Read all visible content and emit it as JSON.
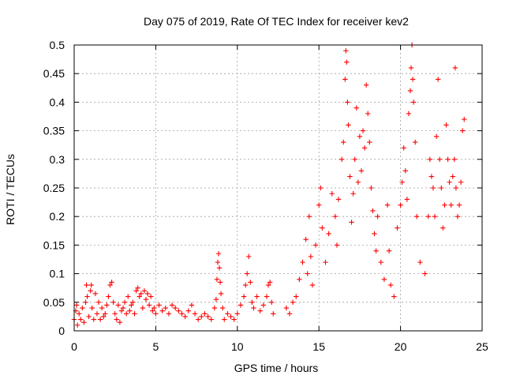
{
  "chart_data": {
    "type": "scatter",
    "title": "Day 075 of 2019, Rate Of TEC Index for receiver kev2",
    "xlabel": "GPS time / hours",
    "ylabel": "ROTI / TECUs",
    "xlim": [
      0,
      25
    ],
    "ylim": [
      0,
      0.5
    ],
    "xticks": [
      0,
      5,
      10,
      15,
      20,
      25
    ],
    "xtick_labels": [
      "0",
      "5",
      "10",
      "15",
      "20",
      "25"
    ],
    "yticks": [
      0,
      0.05,
      0.1,
      0.15,
      0.2,
      0.25,
      0.3,
      0.35,
      0.4,
      0.45,
      0.5
    ],
    "ytick_labels": [
      "0",
      "0.05",
      "0.1",
      "0.15",
      "0.2",
      "0.25",
      "0.3",
      "0.35",
      "0.4",
      "0.45",
      "0.5"
    ],
    "grid": true,
    "marker": "+",
    "color": "#ff0000",
    "series": [
      {
        "name": "ROTI",
        "points": [
          [
            0.0,
            0.02
          ],
          [
            0.1,
            0.035
          ],
          [
            0.15,
            0.045
          ],
          [
            0.2,
            0.01
          ],
          [
            0.3,
            0.03
          ],
          [
            0.4,
            0.02
          ],
          [
            0.5,
            0.04
          ],
          [
            0.6,
            0.015
          ],
          [
            0.7,
            0.05
          ],
          [
            0.75,
            0.08
          ],
          [
            0.8,
            0.06
          ],
          [
            0.9,
            0.025
          ],
          [
            1.0,
            0.07
          ],
          [
            1.05,
            0.08
          ],
          [
            1.1,
            0.04
          ],
          [
            1.2,
            0.02
          ],
          [
            1.3,
            0.065
          ],
          [
            1.4,
            0.03
          ],
          [
            1.5,
            0.05
          ],
          [
            1.6,
            0.02
          ],
          [
            1.7,
            0.04
          ],
          [
            1.8,
            0.025
          ],
          [
            1.9,
            0.03
          ],
          [
            2.0,
            0.045
          ],
          [
            2.1,
            0.06
          ],
          [
            2.2,
            0.08
          ],
          [
            2.3,
            0.085
          ],
          [
            2.4,
            0.05
          ],
          [
            2.5,
            0.03
          ],
          [
            2.6,
            0.02
          ],
          [
            2.7,
            0.045
          ],
          [
            2.8,
            0.015
          ],
          [
            2.9,
            0.035
          ],
          [
            3.0,
            0.04
          ],
          [
            3.1,
            0.05
          ],
          [
            3.2,
            0.03
          ],
          [
            3.3,
            0.06
          ],
          [
            3.4,
            0.035
          ],
          [
            3.5,
            0.045
          ],
          [
            3.6,
            0.05
          ],
          [
            3.7,
            0.03
          ],
          [
            3.8,
            0.07
          ],
          [
            3.9,
            0.075
          ],
          [
            4.0,
            0.06
          ],
          [
            4.1,
            0.065
          ],
          [
            4.2,
            0.04
          ],
          [
            4.3,
            0.07
          ],
          [
            4.4,
            0.055
          ],
          [
            4.5,
            0.065
          ],
          [
            4.6,
            0.045
          ],
          [
            4.7,
            0.06
          ],
          [
            4.8,
            0.035
          ],
          [
            4.9,
            0.04
          ],
          [
            5.0,
            0.03
          ],
          [
            5.2,
            0.045
          ],
          [
            5.4,
            0.035
          ],
          [
            5.6,
            0.04
          ],
          [
            5.8,
            0.03
          ],
          [
            6.0,
            0.045
          ],
          [
            6.2,
            0.04
          ],
          [
            6.4,
            0.035
          ],
          [
            6.6,
            0.03
          ],
          [
            6.8,
            0.025
          ],
          [
            7.0,
            0.035
          ],
          [
            7.2,
            0.045
          ],
          [
            7.4,
            0.03
          ],
          [
            7.6,
            0.02
          ],
          [
            7.8,
            0.025
          ],
          [
            8.0,
            0.03
          ],
          [
            8.2,
            0.025
          ],
          [
            8.4,
            0.02
          ],
          [
            8.6,
            0.04
          ],
          [
            8.7,
            0.055
          ],
          [
            8.75,
            0.09
          ],
          [
            8.8,
            0.12
          ],
          [
            8.85,
            0.135
          ],
          [
            8.9,
            0.11
          ],
          [
            8.95,
            0.085
          ],
          [
            9.0,
            0.065
          ],
          [
            9.1,
            0.04
          ],
          [
            9.2,
            0.02
          ],
          [
            9.4,
            0.03
          ],
          [
            9.6,
            0.025
          ],
          [
            9.8,
            0.02
          ],
          [
            10.0,
            0.03
          ],
          [
            10.2,
            0.045
          ],
          [
            10.4,
            0.06
          ],
          [
            10.5,
            0.08
          ],
          [
            10.6,
            0.1
          ],
          [
            10.7,
            0.13
          ],
          [
            10.8,
            0.085
          ],
          [
            10.9,
            0.05
          ],
          [
            11.0,
            0.04
          ],
          [
            11.2,
            0.06
          ],
          [
            11.4,
            0.035
          ],
          [
            11.6,
            0.045
          ],
          [
            11.8,
            0.06
          ],
          [
            11.9,
            0.08
          ],
          [
            12.0,
            0.085
          ],
          [
            12.1,
            0.05
          ],
          [
            12.2,
            0.03
          ],
          [
            13.0,
            0.04
          ],
          [
            13.2,
            0.03
          ],
          [
            13.4,
            0.05
          ],
          [
            13.6,
            0.06
          ],
          [
            13.8,
            0.09
          ],
          [
            14.0,
            0.12
          ],
          [
            14.2,
            0.16
          ],
          [
            14.3,
            0.1
          ],
          [
            14.4,
            0.2
          ],
          [
            14.5,
            0.13
          ],
          [
            14.6,
            0.08
          ],
          [
            14.8,
            0.15
          ],
          [
            15.0,
            0.22
          ],
          [
            15.1,
            0.25
          ],
          [
            15.2,
            0.18
          ],
          [
            15.4,
            0.12
          ],
          [
            15.6,
            0.17
          ],
          [
            15.8,
            0.24
          ],
          [
            16.0,
            0.2
          ],
          [
            16.1,
            0.15
          ],
          [
            16.2,
            0.23
          ],
          [
            16.4,
            0.3
          ],
          [
            16.5,
            0.33
          ],
          [
            16.6,
            0.44
          ],
          [
            16.65,
            0.49
          ],
          [
            16.7,
            0.47
          ],
          [
            16.75,
            0.4
          ],
          [
            16.8,
            0.36
          ],
          [
            16.9,
            0.27
          ],
          [
            17.0,
            0.19
          ],
          [
            17.1,
            0.24
          ],
          [
            17.2,
            0.3
          ],
          [
            17.3,
            0.39
          ],
          [
            17.4,
            0.26
          ],
          [
            17.5,
            0.34
          ],
          [
            17.6,
            0.28
          ],
          [
            17.7,
            0.35
          ],
          [
            17.8,
            0.32
          ],
          [
            17.9,
            0.43
          ],
          [
            18.0,
            0.38
          ],
          [
            18.1,
            0.33
          ],
          [
            18.2,
            0.25
          ],
          [
            18.3,
            0.21
          ],
          [
            18.4,
            0.17
          ],
          [
            18.5,
            0.14
          ],
          [
            18.6,
            0.2
          ],
          [
            18.8,
            0.12
          ],
          [
            19.0,
            0.09
          ],
          [
            19.2,
            0.22
          ],
          [
            19.3,
            0.14
          ],
          [
            19.4,
            0.08
          ],
          [
            19.6,
            0.06
          ],
          [
            19.8,
            0.18
          ],
          [
            20.0,
            0.22
          ],
          [
            20.1,
            0.26
          ],
          [
            20.2,
            0.32
          ],
          [
            20.3,
            0.28
          ],
          [
            20.4,
            0.23
          ],
          [
            20.5,
            0.38
          ],
          [
            20.6,
            0.42
          ],
          [
            20.65,
            0.46
          ],
          [
            20.7,
            0.5
          ],
          [
            20.75,
            0.44
          ],
          [
            20.8,
            0.4
          ],
          [
            20.9,
            0.33
          ],
          [
            21.0,
            0.2
          ],
          [
            21.2,
            0.12
          ],
          [
            21.5,
            0.1
          ],
          [
            21.7,
            0.2
          ],
          [
            21.8,
            0.3
          ],
          [
            21.9,
            0.27
          ],
          [
            22.0,
            0.25
          ],
          [
            22.1,
            0.2
          ],
          [
            22.2,
            0.34
          ],
          [
            22.3,
            0.44
          ],
          [
            22.4,
            0.3
          ],
          [
            22.5,
            0.25
          ],
          [
            22.6,
            0.18
          ],
          [
            22.7,
            0.22
          ],
          [
            22.8,
            0.36
          ],
          [
            22.9,
            0.3
          ],
          [
            23.0,
            0.26
          ],
          [
            23.1,
            0.22
          ],
          [
            23.2,
            0.27
          ],
          [
            23.3,
            0.3
          ],
          [
            23.35,
            0.46
          ],
          [
            23.4,
            0.25
          ],
          [
            23.5,
            0.2
          ],
          [
            23.6,
            0.22
          ],
          [
            23.7,
            0.26
          ],
          [
            23.8,
            0.35
          ],
          [
            23.9,
            0.37
          ]
        ]
      }
    ]
  }
}
